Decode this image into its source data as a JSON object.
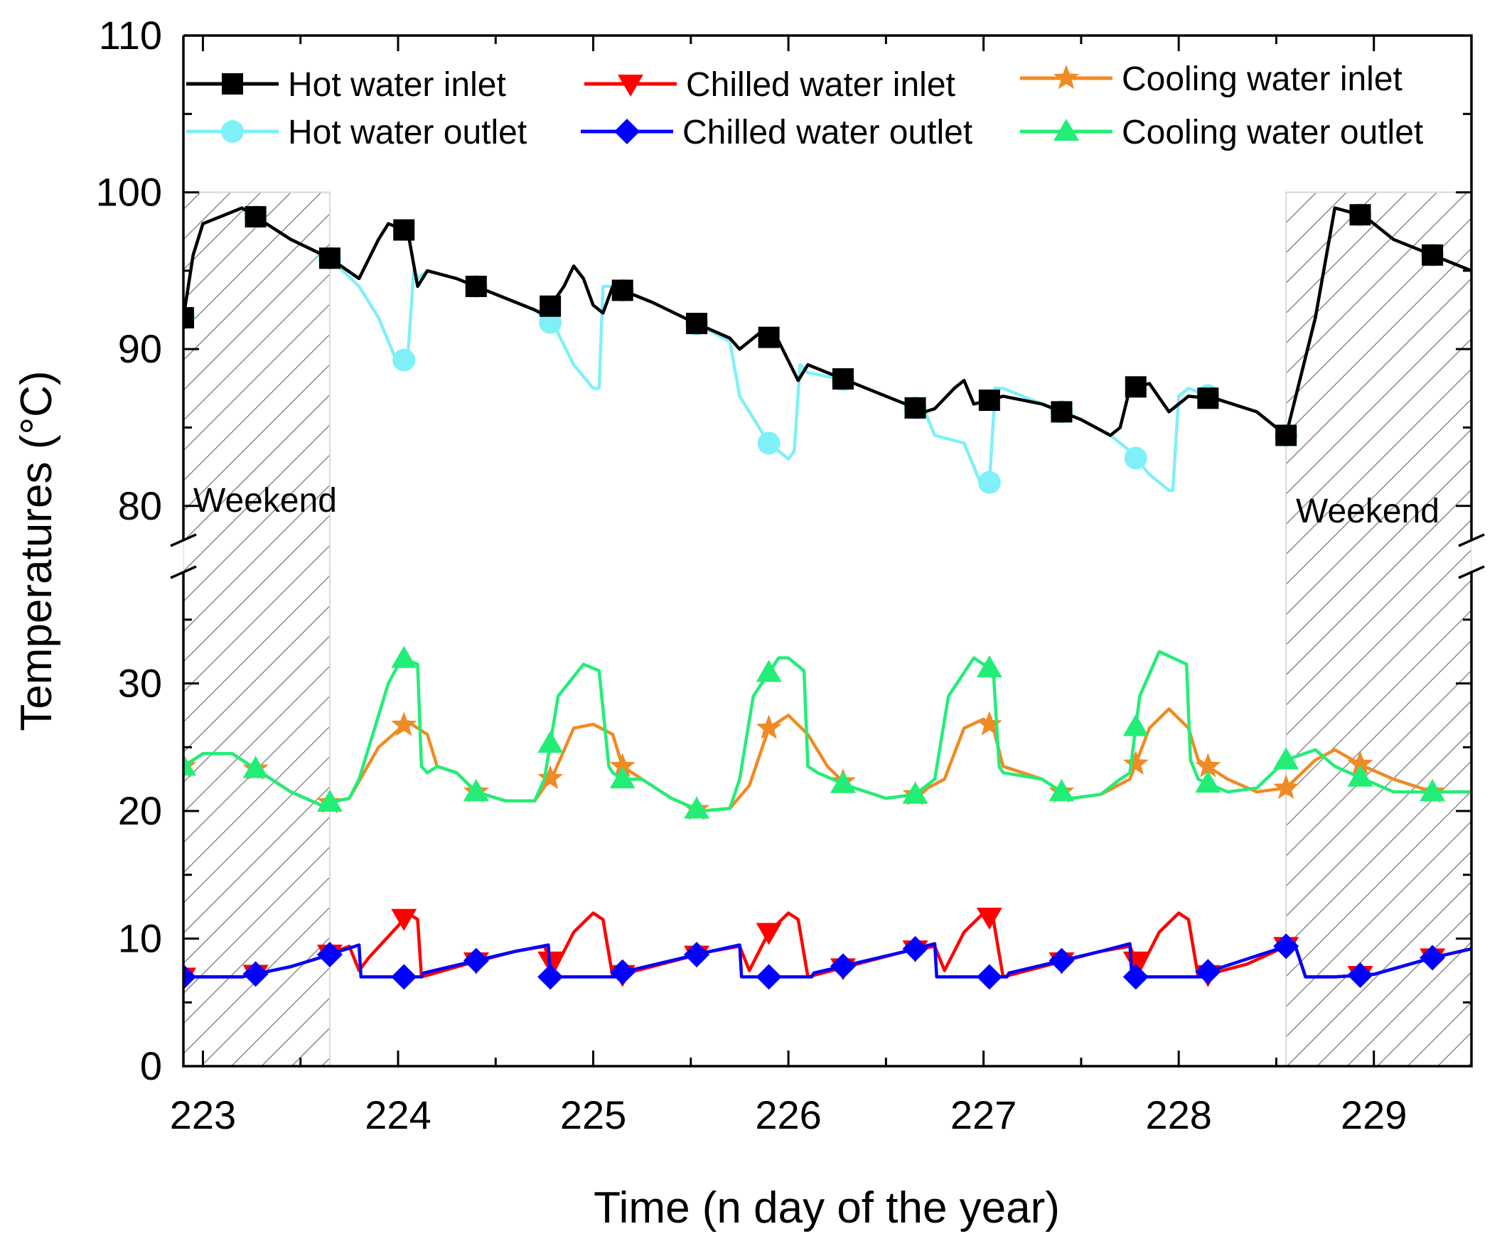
{
  "chart_data": {
    "type": "line",
    "title": "",
    "xlabel": "Time (n day of the year)",
    "ylabel": "Temperatures (°C)",
    "xlim": [
      222.9,
      229.5
    ],
    "y_break": {
      "lower_range": [
        0,
        39
      ],
      "upper_range": [
        76,
        110
      ]
    },
    "xticks": [
      "223",
      "224",
      "225",
      "226",
      "227",
      "228",
      "229"
    ],
    "yticks_lower": [
      "0",
      "10",
      "20",
      "30"
    ],
    "yticks_upper": [
      "80",
      "90",
      "100",
      "110"
    ],
    "weekend_spans": [
      [
        222.9,
        223.65
      ],
      [
        228.55,
        229.5
      ]
    ],
    "annotations": [
      "Weekend",
      "Weekend"
    ],
    "legend_position": "top",
    "series": [
      {
        "name": "Hot water inlet",
        "color": "#000000",
        "marker": "square",
        "x": [
          222.9,
          222.95,
          223.0,
          223.1,
          223.2,
          223.3,
          223.45,
          223.65,
          223.8,
          223.9,
          223.95,
          224.05,
          224.1,
          224.15,
          224.3,
          224.5,
          224.7,
          224.75,
          224.85,
          224.9,
          224.95,
          225.0,
          225.05,
          225.1,
          225.3,
          225.5,
          225.7,
          225.75,
          225.85,
          225.95,
          226.05,
          226.1,
          226.3,
          226.5,
          226.7,
          226.75,
          226.85,
          226.9,
          226.95,
          227.05,
          227.1,
          227.3,
          227.5,
          227.65,
          227.7,
          227.75,
          227.85,
          227.95,
          228.05,
          228.2,
          228.4,
          228.55,
          228.7,
          228.8,
          228.95,
          229.1,
          229.3,
          229.5
        ],
        "y": [
          92,
          96,
          98,
          98.5,
          99,
          98.2,
          97,
          95.8,
          94.5,
          97,
          98,
          97.5,
          94,
          95,
          94.5,
          93.5,
          92.5,
          92.2,
          94,
          95.3,
          94.5,
          92.8,
          92.3,
          94,
          93,
          91.8,
          90.7,
          90,
          91,
          90.5,
          88,
          89,
          88,
          87,
          86,
          86.2,
          87.5,
          88,
          86.5,
          86.8,
          87,
          86.5,
          85.5,
          84.5,
          85,
          87.5,
          87.8,
          86,
          87,
          86.8,
          86,
          84.5,
          92,
          99,
          98.5,
          97,
          96,
          95
        ]
      },
      {
        "name": "Hot water outlet",
        "color": "#7ff0f8",
        "marker": "circle",
        "x": [
          222.9,
          222.95,
          223.0,
          223.1,
          223.2,
          223.3,
          223.45,
          223.65,
          223.8,
          223.9,
          224.0,
          224.05,
          224.08,
          224.1,
          224.15,
          224.3,
          224.5,
          224.7,
          224.8,
          224.9,
          225.0,
          225.03,
          225.05,
          225.1,
          225.3,
          225.5,
          225.7,
          225.75,
          225.9,
          226.0,
          226.03,
          226.06,
          226.1,
          226.3,
          226.5,
          226.7,
          226.75,
          226.9,
          227.0,
          227.03,
          227.06,
          227.1,
          227.3,
          227.5,
          227.65,
          227.75,
          227.85,
          227.95,
          227.97,
          228.0,
          228.05,
          228.2,
          228.4,
          228.55,
          228.7,
          228.8,
          228.95,
          229.1,
          229.3,
          229.5
        ],
        "y": [
          92,
          96,
          98,
          98.5,
          99,
          98.2,
          97,
          95.8,
          94,
          92,
          89,
          89.5,
          95,
          94.5,
          95,
          94.5,
          93.5,
          92.5,
          91.5,
          89,
          87.5,
          87.5,
          94,
          94,
          93,
          91.8,
          90.5,
          87,
          84,
          83,
          83.5,
          89,
          88.5,
          88,
          87,
          86,
          84.5,
          84,
          81,
          81.5,
          87.5,
          87.5,
          86.5,
          85.5,
          84.5,
          83.5,
          82,
          81,
          81,
          87,
          87.5,
          86.8,
          86,
          84.5,
          92,
          99,
          98.5,
          97,
          96,
          95
        ]
      },
      {
        "name": "Chilled water inlet",
        "color": "#ff0000",
        "marker": "triangle-down",
        "x": [
          222.9,
          223.2,
          223.45,
          223.6,
          223.75,
          223.8,
          223.85,
          224.0,
          224.05,
          224.1,
          224.12,
          224.35,
          224.6,
          224.75,
          224.8,
          224.9,
          225.0,
          225.05,
          225.1,
          225.35,
          225.6,
          225.75,
          225.8,
          225.9,
          226.0,
          226.05,
          226.1,
          226.35,
          226.6,
          226.75,
          226.8,
          226.9,
          227.0,
          227.05,
          227.1,
          227.35,
          227.6,
          227.75,
          227.8,
          227.9,
          228.0,
          228.05,
          228.1,
          228.35,
          228.55,
          228.6,
          228.65,
          228.8,
          229.0,
          229.3,
          229.5
        ],
        "y": [
          7,
          7,
          7.8,
          8.5,
          9.4,
          7.5,
          8.5,
          11,
          12,
          11.5,
          7,
          8,
          9,
          9.4,
          7.5,
          10.5,
          12,
          11.5,
          7,
          8,
          9,
          9.4,
          7.5,
          10.5,
          12,
          11.5,
          7,
          8,
          9,
          9.4,
          7.5,
          10.5,
          12,
          11.5,
          7,
          8,
          9,
          9.4,
          7.5,
          10.5,
          12,
          11.5,
          7,
          8,
          9.4,
          9.3,
          7,
          7,
          7.2,
          8.5,
          9.2
        ]
      },
      {
        "name": "Chilled water outlet",
        "color": "#0000ff",
        "marker": "diamond",
        "x": [
          222.9,
          223.2,
          223.45,
          223.6,
          223.8,
          223.81,
          224.12,
          224.13,
          224.6,
          224.77,
          224.78,
          225.12,
          225.13,
          225.6,
          225.75,
          225.76,
          226.12,
          226.13,
          226.6,
          226.75,
          226.76,
          227.12,
          227.13,
          227.6,
          227.75,
          227.76,
          228.12,
          228.13,
          228.55,
          228.6,
          228.65,
          228.8,
          229.0,
          229.3,
          229.5
        ],
        "y": [
          7,
          7,
          7.8,
          8.5,
          9.5,
          7,
          7,
          7.3,
          9,
          9.5,
          7,
          7,
          7.3,
          9,
          9.5,
          7,
          7,
          7.3,
          9,
          9.6,
          7,
          7,
          7.3,
          9,
          9.6,
          7,
          7,
          7.3,
          9.4,
          9.3,
          7,
          7,
          7.2,
          8.5,
          9.2
        ]
      },
      {
        "name": "Cooling water inlet",
        "color": "#f08a24",
        "marker": "star",
        "x": [
          222.9,
          223.0,
          223.15,
          223.3,
          223.45,
          223.6,
          223.75,
          223.9,
          224.05,
          224.15,
          224.2,
          224.3,
          224.4,
          224.55,
          224.7,
          224.8,
          224.9,
          225.0,
          225.1,
          225.15,
          225.25,
          225.4,
          225.55,
          225.7,
          225.8,
          225.9,
          226.0,
          226.1,
          226.2,
          226.3,
          226.5,
          226.65,
          226.8,
          226.9,
          227.0,
          227.05,
          227.1,
          227.3,
          227.45,
          227.6,
          227.75,
          227.85,
          227.95,
          228.05,
          228.1,
          228.25,
          228.4,
          228.55,
          228.7,
          228.8,
          228.95,
          229.1,
          229.3,
          229.5
        ],
        "y": [
          23.5,
          24.5,
          24.5,
          23,
          21.5,
          20.5,
          21,
          25,
          27,
          26,
          23.5,
          23,
          21.5,
          20.8,
          20.8,
          23,
          26.5,
          26.8,
          26,
          23.5,
          22.5,
          21,
          20,
          20.2,
          22,
          26.5,
          27.5,
          26,
          23.5,
          22,
          21,
          21.3,
          22.5,
          26.5,
          27.2,
          26.5,
          23.5,
          22.5,
          21,
          21.3,
          22.5,
          26.5,
          28,
          26.5,
          24,
          22.5,
          21.5,
          21.8,
          24,
          24.8,
          23.5,
          22.5,
          21.5,
          21.5
        ]
      },
      {
        "name": "Cooling water outlet",
        "color": "#22ee77",
        "marker": "triangle-up",
        "x": [
          222.9,
          223.0,
          223.15,
          223.3,
          223.45,
          223.6,
          223.75,
          223.8,
          223.95,
          224.02,
          224.1,
          224.12,
          224.15,
          224.2,
          224.3,
          224.4,
          224.55,
          224.7,
          224.75,
          224.82,
          224.95,
          225.03,
          225.08,
          225.1,
          225.15,
          225.25,
          225.4,
          225.55,
          225.7,
          225.75,
          225.82,
          225.95,
          226.0,
          226.08,
          226.1,
          226.15,
          226.3,
          226.5,
          226.65,
          226.75,
          226.82,
          226.95,
          227.0,
          227.05,
          227.08,
          227.1,
          227.3,
          227.45,
          227.6,
          227.7,
          227.75,
          227.8,
          227.9,
          227.97,
          228.04,
          228.06,
          228.1,
          228.25,
          228.4,
          228.55,
          228.7,
          228.8,
          228.95,
          229.1,
          229.3,
          229.5
        ],
        "y": [
          23.5,
          24.5,
          24.5,
          23,
          21.5,
          20.5,
          21,
          22.5,
          30,
          32,
          31.5,
          23.5,
          23,
          23.5,
          23,
          21.5,
          20.8,
          20.8,
          22.5,
          29,
          31.5,
          31,
          23.5,
          23,
          22.5,
          22.5,
          21,
          20,
          20.2,
          22.5,
          29,
          32,
          32,
          31,
          23.5,
          23,
          22,
          21,
          21.3,
          22.5,
          29,
          32,
          31.5,
          31,
          23.5,
          23,
          22.5,
          21,
          21.3,
          22.5,
          23,
          29,
          32.5,
          32,
          31.5,
          24,
          22.5,
          21.5,
          21.8,
          24,
          24.8,
          23.5,
          22.5,
          21.5,
          21.5,
          21.5
        ]
      }
    ]
  }
}
